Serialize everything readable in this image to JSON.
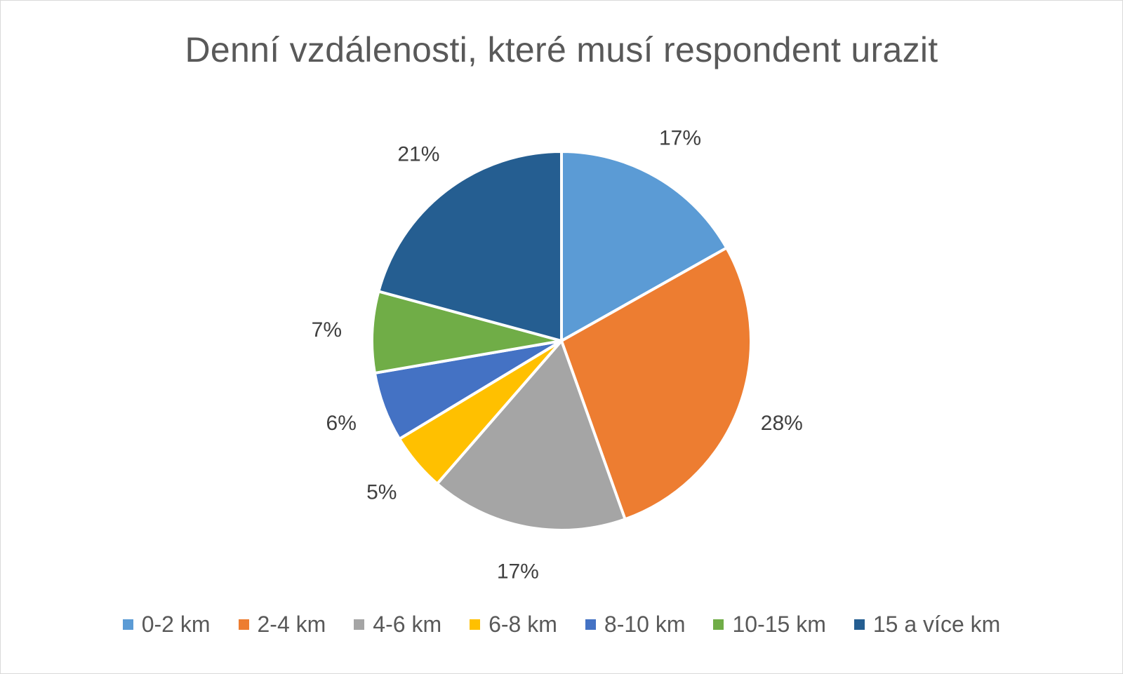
{
  "chart_data": {
    "type": "pie",
    "title": "Denní vzdálenosti, které musí respondent urazit",
    "categories": [
      "0-2 km",
      "2-4 km",
      "4-6 km",
      "6-8 km",
      "8-10 km",
      "10-15 km",
      "15 a více km"
    ],
    "values": [
      17,
      28,
      17,
      5,
      6,
      7,
      21
    ],
    "data_labels": [
      "17%",
      "28%",
      "17%",
      "5%",
      "6%",
      "7%",
      "21%"
    ],
    "colors": [
      "#5b9bd5",
      "#ed7d31",
      "#a5a5a5",
      "#ffc000",
      "#4472c4",
      "#70ad47",
      "#255e91"
    ],
    "legend_position": "bottom"
  }
}
